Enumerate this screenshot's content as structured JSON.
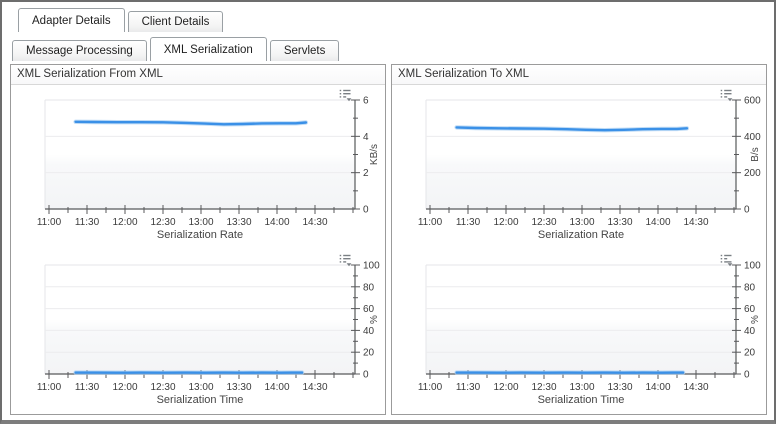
{
  "window": {
    "background": "#ffffff"
  },
  "tabs_primary": [
    {
      "label": "Adapter Details",
      "active": true
    },
    {
      "label": "Client Details",
      "active": false
    }
  ],
  "tabs_secondary": [
    {
      "label": "Message Processing",
      "active": false
    },
    {
      "label": "XML Serialization",
      "active": true
    },
    {
      "label": "Servlets",
      "active": false
    }
  ],
  "panels": [
    {
      "title": "XML Serialization From XML"
    },
    {
      "title": "XML Serialization To XML"
    }
  ],
  "icons": {
    "chart_menu": "list-with-dropdown-arrow"
  },
  "colors": {
    "line": "#3a90e7",
    "line_halo": "#aed2f3",
    "axis": "#58595b",
    "grid": "#ececee",
    "plot_edge": "#e4e6e9",
    "tick_text": "#3c3c3c",
    "axis_title": "#454545",
    "band_low": "#f3f4f6",
    "icon": "#7a7f84"
  },
  "chart_data": [
    {
      "type": "line",
      "xlabel": "Serialization Rate",
      "ylabel": "KB/s",
      "ylim": [
        0,
        6
      ],
      "yticks": [
        0,
        2,
        4,
        6
      ],
      "x_range_hours": [
        11.0,
        15.03
      ],
      "x_tick_hours": [
        11.0,
        11.5,
        12.0,
        12.5,
        13.0,
        13.5,
        14.0,
        14.5
      ],
      "x_tick_labels": [
        "11:00",
        "11:30",
        "12:00",
        "12:30",
        "13:00",
        "13:30",
        "14:00",
        "14:30"
      ],
      "series": [
        {
          "name": "XML Serialization From XML - Serialization Rate",
          "x": [
            11.35,
            11.6,
            11.9,
            12.2,
            12.5,
            12.8,
            13.05,
            13.3,
            13.55,
            13.8,
            14.05,
            14.25,
            14.38
          ],
          "y": [
            4.8,
            4.79,
            4.78,
            4.78,
            4.77,
            4.74,
            4.7,
            4.66,
            4.68,
            4.71,
            4.72,
            4.72,
            4.76
          ]
        }
      ]
    },
    {
      "type": "line",
      "xlabel": "Serialization Time",
      "ylabel": "%",
      "ylim": [
        0,
        100
      ],
      "yticks": [
        0,
        20,
        40,
        60,
        80,
        100
      ],
      "x_range_hours": [
        11.0,
        15.03
      ],
      "x_tick_hours": [
        11.0,
        11.5,
        12.0,
        12.5,
        13.0,
        13.5,
        14.0,
        14.5
      ],
      "x_tick_labels": [
        "11:00",
        "11:30",
        "12:00",
        "12:30",
        "13:00",
        "13:30",
        "14:00",
        "14:30"
      ],
      "series": [
        {
          "name": "XML Serialization From XML - Serialization Time",
          "x": [
            11.35,
            11.6,
            11.9,
            12.2,
            12.5,
            12.8,
            13.05,
            13.3,
            13.55,
            13.8,
            14.05,
            14.2,
            14.33
          ],
          "y": [
            1.3,
            1.3,
            1.2,
            1.3,
            1.2,
            1.3,
            1.2,
            1.3,
            1.2,
            1.3,
            1.2,
            1.3,
            1.3
          ]
        }
      ]
    },
    {
      "type": "line",
      "xlabel": "Serialization Rate",
      "ylabel": "B/s",
      "ylim": [
        0,
        600
      ],
      "yticks": [
        0,
        200,
        400,
        600
      ],
      "x_range_hours": [
        11.0,
        15.03
      ],
      "x_tick_hours": [
        11.0,
        11.5,
        12.0,
        12.5,
        13.0,
        13.5,
        14.0,
        14.5
      ],
      "x_tick_labels": [
        "11:00",
        "11:30",
        "12:00",
        "12:30",
        "13:00",
        "13:30",
        "14:00",
        "14:30"
      ],
      "series": [
        {
          "name": "XML Serialization To XML - Serialization Rate",
          "x": [
            11.35,
            11.6,
            11.9,
            12.2,
            12.5,
            12.8,
            13.05,
            13.3,
            13.55,
            13.8,
            14.05,
            14.25,
            14.38
          ],
          "y": [
            449,
            446,
            444,
            443,
            442,
            439,
            436,
            434,
            436,
            439,
            441,
            441,
            444
          ]
        }
      ]
    },
    {
      "type": "line",
      "xlabel": "Serialization Time",
      "ylabel": "%",
      "ylim": [
        0,
        100
      ],
      "yticks": [
        0,
        20,
        40,
        60,
        80,
        100
      ],
      "x_range_hours": [
        11.0,
        15.03
      ],
      "x_tick_hours": [
        11.0,
        11.5,
        12.0,
        12.5,
        13.0,
        13.5,
        14.0,
        14.5
      ],
      "x_tick_labels": [
        "11:00",
        "11:30",
        "12:00",
        "12:30",
        "13:00",
        "13:30",
        "14:00",
        "14:30"
      ],
      "series": [
        {
          "name": "XML Serialization To XML - Serialization Time",
          "x": [
            11.35,
            11.6,
            11.9,
            12.2,
            12.5,
            12.8,
            13.05,
            13.3,
            13.55,
            13.8,
            14.05,
            14.2,
            14.33
          ],
          "y": [
            1.3,
            1.3,
            1.2,
            1.3,
            1.2,
            1.3,
            1.2,
            1.3,
            1.2,
            1.3,
            1.2,
            1.3,
            1.3
          ]
        }
      ]
    }
  ]
}
